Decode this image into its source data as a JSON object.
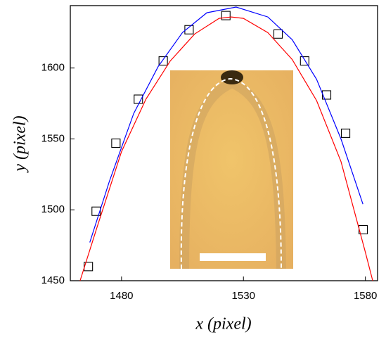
{
  "chart_data": {
    "type": "scatter",
    "x_label": "x (pixel)",
    "y_label": "y (pixel)",
    "xlim": [
      1459,
      1585
    ],
    "ylim": [
      1450,
      1644
    ],
    "xticks": [
      1480,
      1530,
      1580
    ],
    "yticks": [
      1450,
      1500,
      1550,
      1600
    ],
    "series": [
      {
        "color": "#000000",
        "marker": "square",
        "x": [
          1466.4,
          1469.6,
          1477.7,
          1486.9,
          1497.1,
          1507.7,
          1522.8,
          1544.2,
          1555.1,
          1564.1,
          1571.9,
          1579.1
        ],
        "values": [
          1460,
          1499,
          1547,
          1578,
          1605,
          1627,
          1637,
          1624,
          1605,
          1581,
          1554,
          1486
        ]
      },
      {
        "color": "#ff0000",
        "marker": "line",
        "x": [
          1463,
          1470,
          1480,
          1490,
          1500,
          1510,
          1520,
          1525,
          1530,
          1540,
          1550,
          1560,
          1570,
          1580,
          1583
        ],
        "values": [
          1450,
          1488,
          1541,
          1578,
          1605,
          1624,
          1635,
          1636,
          1635,
          1625,
          1606,
          1577,
          1534,
          1470,
          1450
        ]
      },
      {
        "color": "#0000ff",
        "marker": "line",
        "x": [
          1467,
          1475,
          1485,
          1495,
          1505,
          1515,
          1527,
          1540,
          1550,
          1560,
          1570,
          1579
        ],
        "values": [
          1477,
          1520,
          1568,
          1601,
          1625,
          1639,
          1643,
          1636,
          1620,
          1592,
          1550,
          1504
        ]
      }
    ]
  }
}
